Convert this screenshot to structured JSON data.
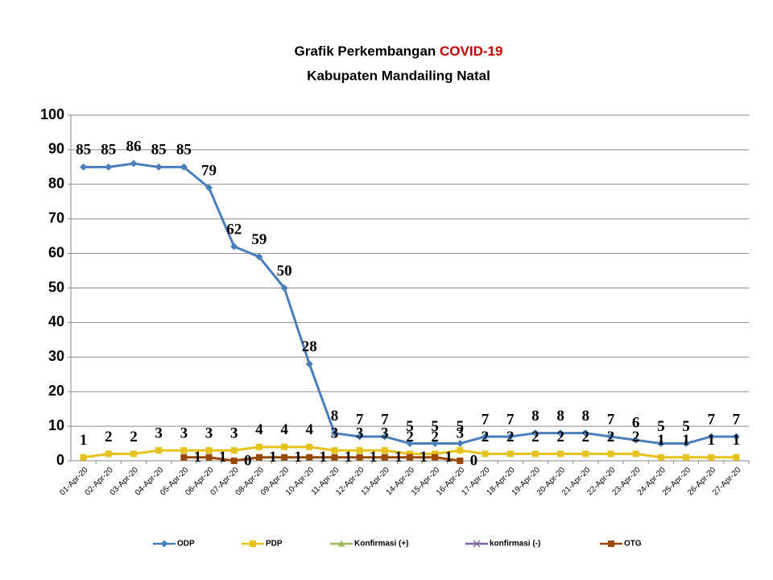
{
  "chart_data": {
    "type": "line",
    "title": "Grafik Perkembangan",
    "title_highlight": "COVID-19",
    "subtitle": "Kabupaten Mandailing Natal",
    "categories": [
      "01-Apr-20",
      "02-Apr-20",
      "03-Apr-20",
      "04-Apr-20",
      "05-Apr-20",
      "06-Apr-20",
      "07-Apr-20",
      "08-Apr-20",
      "09-Apr-20",
      "10-Apr-20",
      "11-Apr-20",
      "12-Apr-20",
      "13-Apr-20",
      "14-Apr-20",
      "15-Apr-20",
      "16-Apr-20",
      "17-Apr-20",
      "18-Apr-20",
      "19-Apr-20",
      "20-Apr-20",
      "21-Apr-20",
      "22-Apr-20",
      "23-Apr-20",
      "24-Apr-20",
      "25-Apr-20",
      "26-Apr-20",
      "27-Apr-20"
    ],
    "series": [
      {
        "name": "ODP",
        "color": "#4a7ebb",
        "marker": "diamond",
        "values": [
          85,
          85,
          86,
          85,
          85,
          79,
          62,
          59,
          50,
          28,
          8,
          7,
          7,
          5,
          5,
          5,
          7,
          7,
          8,
          8,
          8,
          7,
          6,
          5,
          5,
          7,
          7
        ]
      },
      {
        "name": "PDP",
        "color": "#e6c21c",
        "marker": "square",
        "values": [
          1,
          2,
          2,
          3,
          3,
          3,
          3,
          4,
          4,
          4,
          3,
          3,
          3,
          2,
          2,
          3,
          2,
          2,
          2,
          2,
          2,
          2,
          2,
          1,
          1,
          1,
          1
        ]
      },
      {
        "name": "Konfirmasi (+)",
        "color": "#9bbb59",
        "marker": "triangle",
        "values": [
          null,
          null,
          null,
          null,
          null,
          null,
          null,
          null,
          null,
          null,
          null,
          null,
          null,
          null,
          null,
          null,
          null,
          null,
          null,
          null,
          null,
          null,
          null,
          null,
          null,
          null,
          null
        ]
      },
      {
        "name": "konfirmasi (-)",
        "color": "#8064a2",
        "marker": "x",
        "values": [
          null,
          null,
          null,
          null,
          null,
          null,
          null,
          null,
          null,
          null,
          null,
          null,
          null,
          null,
          null,
          null,
          null,
          null,
          null,
          null,
          null,
          null,
          null,
          null,
          null,
          null,
          null
        ]
      },
      {
        "name": "OTG",
        "color": "#984807",
        "marker": "square",
        "values": [
          null,
          null,
          null,
          null,
          1,
          1,
          0,
          1,
          1,
          1,
          1,
          1,
          1,
          1,
          1,
          0,
          null,
          null,
          null,
          null,
          null,
          null,
          null,
          null,
          null,
          null,
          null
        ]
      }
    ],
    "ylim": [
      0,
      100
    ],
    "yticks": [
      0,
      10,
      20,
      30,
      40,
      50,
      60,
      70,
      80,
      90,
      100
    ],
    "grid": true,
    "data_labels": true,
    "legend": "bottom"
  }
}
